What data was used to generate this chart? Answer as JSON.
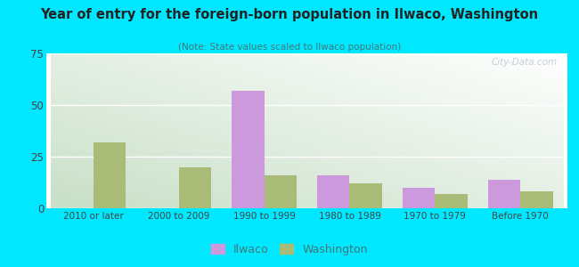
{
  "title": "Year of entry for the foreign-born population in Ilwaco, Washington",
  "subtitle": "(Note: State values scaled to Ilwaco population)",
  "categories": [
    "2010 or later",
    "2000 to 2009",
    "1990 to 1999",
    "1980 to 1989",
    "1970 to 1979",
    "Before 1970"
  ],
  "ilwaco_values": [
    0,
    0,
    57,
    16,
    10,
    14
  ],
  "washington_values": [
    32,
    20,
    16,
    12,
    7,
    8
  ],
  "ilwaco_color": "#cc99dd",
  "washington_color": "#aabb77",
  "ylim": [
    0,
    75
  ],
  "yticks": [
    0,
    25,
    50,
    75
  ],
  "bar_width": 0.38,
  "background_outer": "#00e8ff",
  "title_color": "#222222",
  "subtitle_color": "#447777",
  "tick_color": "#444444",
  "watermark": "City-Data.com"
}
